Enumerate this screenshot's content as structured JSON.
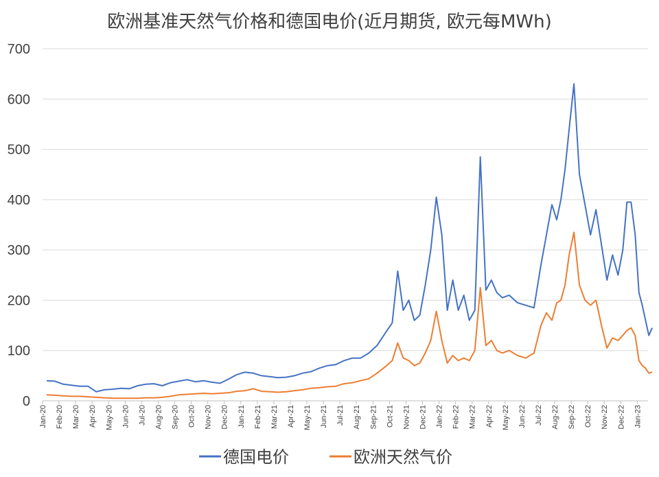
{
  "chart_data": {
    "type": "line",
    "title": "欧洲基准天然气价格和德国电价(近月期货, 欧元每MWh)",
    "xlabel": "",
    "ylabel": "",
    "ylim": [
      0,
      700
    ],
    "yticks": [
      "0",
      "100",
      "200",
      "300",
      "400",
      "500",
      "600",
      "700"
    ],
    "grid": true,
    "legend_position": "bottom",
    "x": [
      "Jan-20",
      "Feb-20",
      "Mar-20",
      "Apr-20",
      "May-20",
      "Jun-20",
      "Jul-20",
      "Aug-20",
      "Sep-20",
      "Oct-20",
      "Nov-20",
      "Dec-20",
      "Jan-21",
      "Feb-21",
      "Mar-21",
      "Apr-21",
      "May-21",
      "Jun-21",
      "Jul-21",
      "Aug-21",
      "Sep-21",
      "Oct-21",
      "Nov-21",
      "Dec-21",
      "Jan-22",
      "Feb-22",
      "Mar-22",
      "Apr-22",
      "May-22",
      "Jun-22",
      "Jul-22",
      "Aug-22",
      "Sep-22",
      "Oct-22",
      "Nov-22",
      "Dec-22",
      "Jan-23"
    ],
    "series": [
      {
        "name": "德国电价",
        "color": "#4472C4",
        "points": [
          [
            "Jan-20",
            40
          ],
          [
            "Jan-20",
            39
          ],
          [
            "Feb-20",
            33
          ],
          [
            "Feb-20",
            31
          ],
          [
            "Mar-20",
            29
          ],
          [
            "Mar-20",
            29
          ],
          [
            "Apr-20",
            18
          ],
          [
            "Apr-20",
            22
          ],
          [
            "May-20",
            23
          ],
          [
            "May-20",
            25
          ],
          [
            "Jun-20",
            24
          ],
          [
            "Jun-20",
            30
          ],
          [
            "Jul-20",
            33
          ],
          [
            "Jul-20",
            34
          ],
          [
            "Aug-20",
            30
          ],
          [
            "Aug-20",
            36
          ],
          [
            "Sep-20",
            39
          ],
          [
            "Sep-20",
            42
          ],
          [
            "Oct-20",
            38
          ],
          [
            "Oct-20",
            40
          ],
          [
            "Nov-20",
            37
          ],
          [
            "Nov-20",
            35
          ],
          [
            "Dec-20",
            43
          ],
          [
            "Dec-20",
            52
          ],
          [
            "Jan-21",
            57
          ],
          [
            "Jan-21",
            55
          ],
          [
            "Feb-21",
            50
          ],
          [
            "Feb-21",
            48
          ],
          [
            "Mar-21",
            46
          ],
          [
            "Mar-21",
            47
          ],
          [
            "Apr-21",
            50
          ],
          [
            "Apr-21",
            55
          ],
          [
            "May-21",
            58
          ],
          [
            "May-21",
            65
          ],
          [
            "Jun-21",
            70
          ],
          [
            "Jun-21",
            72
          ],
          [
            "Jul-21",
            80
          ],
          [
            "Jul-21",
            85
          ],
          [
            "Aug-21",
            85
          ],
          [
            "Aug-21",
            95
          ],
          [
            "Sep-21",
            110
          ],
          [
            "Sep-21",
            135
          ],
          [
            "Oct-21",
            155
          ],
          [
            "Oct-21",
            258
          ],
          [
            "Oct-21",
            180
          ],
          [
            "Nov-21",
            200
          ],
          [
            "Nov-21",
            160
          ],
          [
            "Nov-21",
            170
          ],
          [
            "Dec-21",
            230
          ],
          [
            "Dec-21",
            300
          ],
          [
            "Dec-21",
            405
          ],
          [
            "Jan-22",
            330
          ],
          [
            "Jan-22",
            180
          ],
          [
            "Jan-22",
            240
          ],
          [
            "Feb-22",
            180
          ],
          [
            "Feb-22",
            210
          ],
          [
            "Feb-22",
            160
          ],
          [
            "Mar-22",
            180
          ],
          [
            "Mar-22",
            485
          ],
          [
            "Mar-22",
            220
          ],
          [
            "Apr-22",
            240
          ],
          [
            "Apr-22",
            215
          ],
          [
            "Apr-22",
            205
          ],
          [
            "May-22",
            210
          ],
          [
            "May-22",
            195
          ],
          [
            "Jun-22",
            190
          ],
          [
            "Jun-22",
            185
          ],
          [
            "Jul-22",
            270
          ],
          [
            "Jul-22",
            330
          ],
          [
            "Jul-22",
            390
          ],
          [
            "Aug-22",
            360
          ],
          [
            "Aug-22",
            400
          ],
          [
            "Aug-22",
            460
          ],
          [
            "Aug-22",
            540
          ],
          [
            "Sep-22",
            630
          ],
          [
            "Sep-22",
            450
          ],
          [
            "Sep-22",
            390
          ],
          [
            "Oct-22",
            330
          ],
          [
            "Oct-22",
            380
          ],
          [
            "Oct-22",
            310
          ],
          [
            "Nov-22",
            240
          ],
          [
            "Nov-22",
            290
          ],
          [
            "Nov-22",
            250
          ],
          [
            "Dec-22",
            300
          ],
          [
            "Dec-22",
            395
          ],
          [
            "Dec-22",
            395
          ],
          [
            "Dec-22",
            330
          ],
          [
            "Jan-23",
            215
          ],
          [
            "Jan-23",
            190
          ],
          [
            "Jan-23",
            160
          ],
          [
            "Jan-23",
            130
          ],
          [
            "Jan-23",
            145
          ]
        ]
      },
      {
        "name": "欧洲天然气价",
        "color": "#ED7D31",
        "points": [
          [
            "Jan-20",
            12
          ],
          [
            "Jan-20",
            11
          ],
          [
            "Feb-20",
            10
          ],
          [
            "Feb-20",
            9
          ],
          [
            "Mar-20",
            9
          ],
          [
            "Mar-20",
            8
          ],
          [
            "Apr-20",
            7
          ],
          [
            "Apr-20",
            6
          ],
          [
            "May-20",
            5
          ],
          [
            "May-20",
            5
          ],
          [
            "Jun-20",
            5
          ],
          [
            "Jun-20",
            5
          ],
          [
            "Jul-20",
            6
          ],
          [
            "Jul-20",
            6
          ],
          [
            "Aug-20",
            7
          ],
          [
            "Aug-20",
            9
          ],
          [
            "Sep-20",
            12
          ],
          [
            "Sep-20",
            13
          ],
          [
            "Oct-20",
            14
          ],
          [
            "Oct-20",
            15
          ],
          [
            "Nov-20",
            14
          ],
          [
            "Nov-20",
            15
          ],
          [
            "Dec-20",
            16
          ],
          [
            "Dec-20",
            19
          ],
          [
            "Jan-21",
            20
          ],
          [
            "Jan-21",
            24
          ],
          [
            "Feb-21",
            19
          ],
          [
            "Feb-21",
            18
          ],
          [
            "Mar-21",
            17
          ],
          [
            "Mar-21",
            18
          ],
          [
            "Apr-21",
            20
          ],
          [
            "Apr-21",
            22
          ],
          [
            "May-21",
            25
          ],
          [
            "May-21",
            26
          ],
          [
            "Jun-21",
            28
          ],
          [
            "Jun-21",
            29
          ],
          [
            "Jul-21",
            34
          ],
          [
            "Jul-21",
            36
          ],
          [
            "Aug-21",
            40
          ],
          [
            "Aug-21",
            44
          ],
          [
            "Sep-21",
            55
          ],
          [
            "Sep-21",
            68
          ],
          [
            "Oct-21",
            80
          ],
          [
            "Oct-21",
            115
          ],
          [
            "Oct-21",
            85
          ],
          [
            "Nov-21",
            80
          ],
          [
            "Nov-21",
            70
          ],
          [
            "Nov-21",
            75
          ],
          [
            "Dec-21",
            95
          ],
          [
            "Dec-21",
            120
          ],
          [
            "Dec-21",
            178
          ],
          [
            "Jan-22",
            120
          ],
          [
            "Jan-22",
            75
          ],
          [
            "Jan-22",
            90
          ],
          [
            "Feb-22",
            80
          ],
          [
            "Feb-22",
            85
          ],
          [
            "Feb-22",
            80
          ],
          [
            "Mar-22",
            100
          ],
          [
            "Mar-22",
            225
          ],
          [
            "Mar-22",
            110
          ],
          [
            "Apr-22",
            120
          ],
          [
            "Apr-22",
            100
          ],
          [
            "Apr-22",
            95
          ],
          [
            "May-22",
            100
          ],
          [
            "May-22",
            90
          ],
          [
            "Jun-22",
            85
          ],
          [
            "Jun-22",
            95
          ],
          [
            "Jul-22",
            150
          ],
          [
            "Jul-22",
            175
          ],
          [
            "Jul-22",
            160
          ],
          [
            "Aug-22",
            195
          ],
          [
            "Aug-22",
            200
          ],
          [
            "Aug-22",
            230
          ],
          [
            "Aug-22",
            290
          ],
          [
            "Sep-22",
            335
          ],
          [
            "Sep-22",
            230
          ],
          [
            "Sep-22",
            200
          ],
          [
            "Oct-22",
            190
          ],
          [
            "Oct-22",
            200
          ],
          [
            "Oct-22",
            150
          ],
          [
            "Nov-22",
            105
          ],
          [
            "Nov-22",
            125
          ],
          [
            "Nov-22",
            120
          ],
          [
            "Dec-22",
            130
          ],
          [
            "Dec-22",
            140
          ],
          [
            "Dec-22",
            145
          ],
          [
            "Dec-22",
            130
          ],
          [
            "Jan-23",
            80
          ],
          [
            "Jan-23",
            70
          ],
          [
            "Jan-23",
            65
          ],
          [
            "Jan-23",
            55
          ],
          [
            "Jan-23",
            57
          ]
        ]
      }
    ]
  }
}
